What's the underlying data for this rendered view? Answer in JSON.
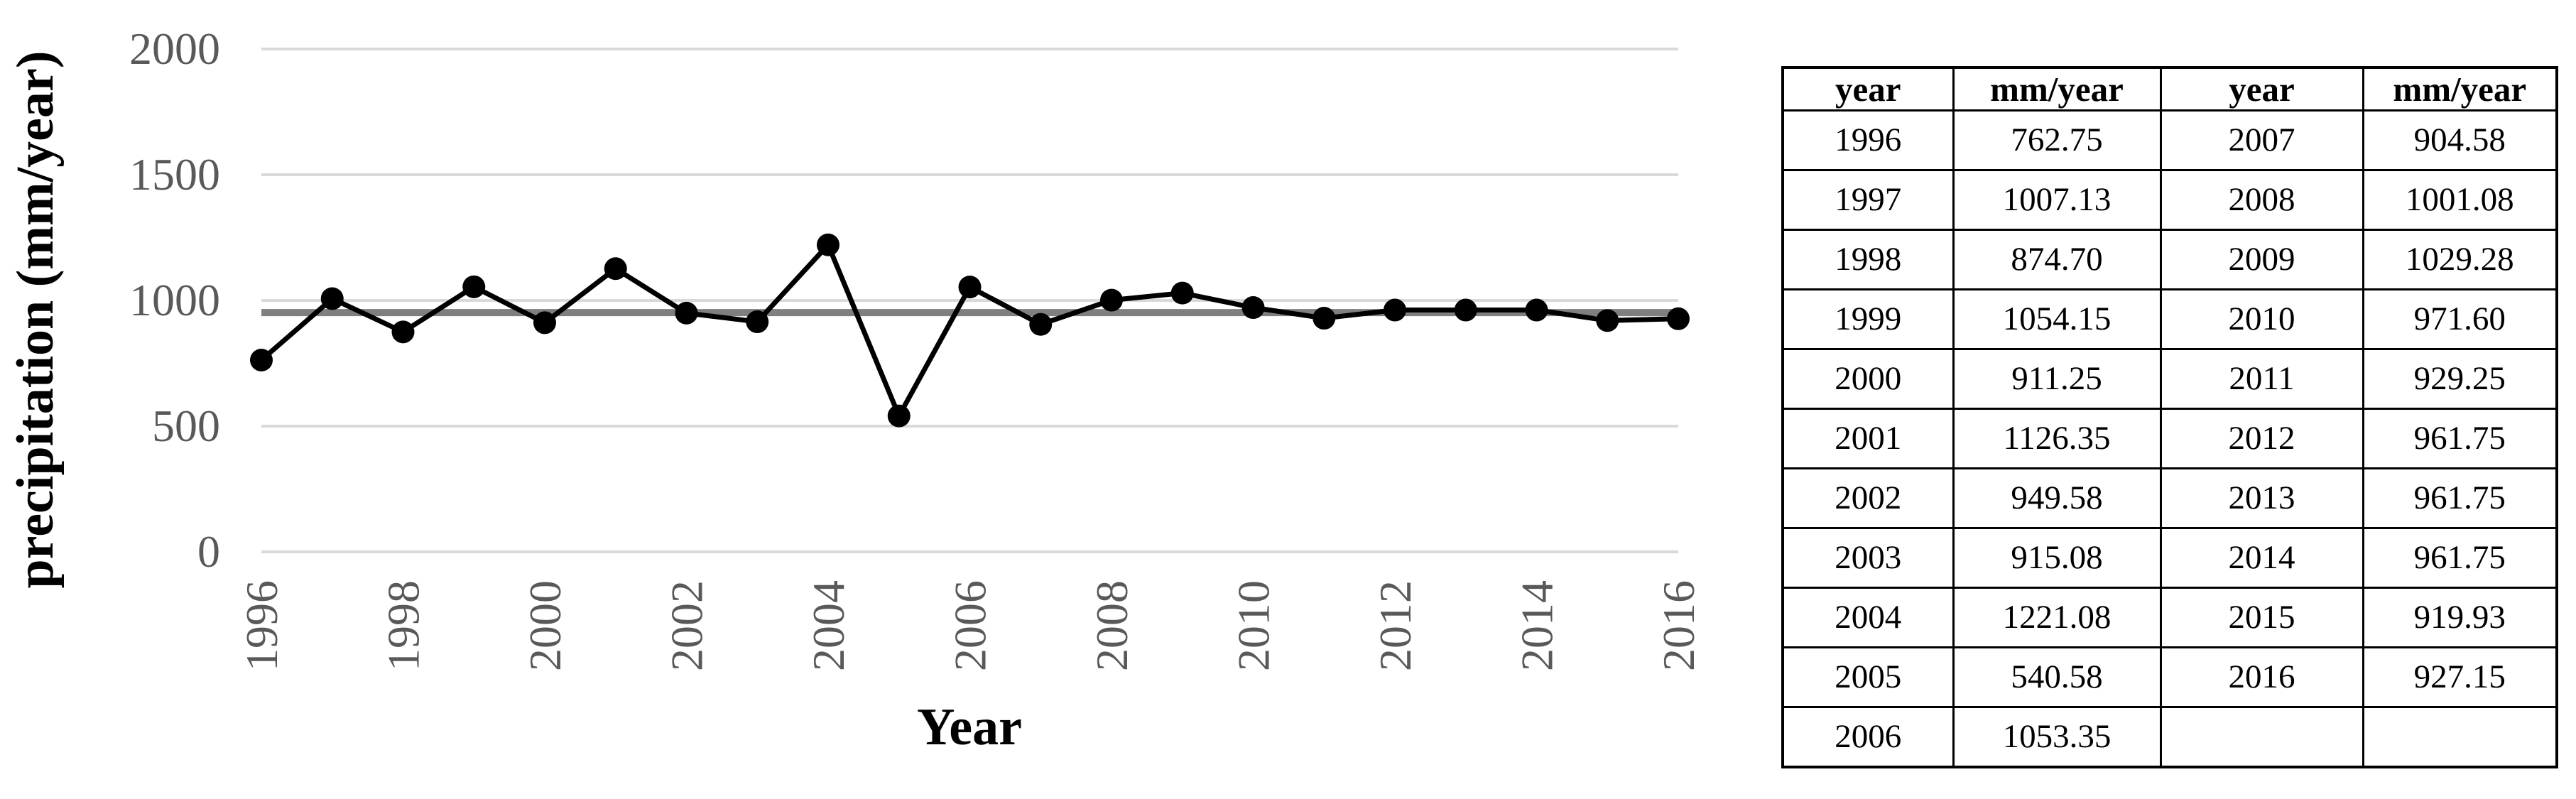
{
  "chart_data": {
    "type": "line",
    "title": "",
    "xlabel": "Year",
    "ylabel": "precipitation (mm/year)",
    "x": [
      1996,
      1997,
      1998,
      1999,
      2000,
      2001,
      2002,
      2003,
      2004,
      2005,
      2006,
      2007,
      2008,
      2009,
      2010,
      2011,
      2012,
      2013,
      2014,
      2015,
      2016
    ],
    "values": [
      762.75,
      1007.13,
      874.7,
      1054.15,
      911.25,
      1126.35,
      949.58,
      915.08,
      1221.08,
      540.58,
      1053.35,
      904.58,
      1001.08,
      1029.28,
      971.6,
      929.25,
      961.75,
      961.75,
      961.75,
      919.93,
      927.15
    ],
    "mean_line_value": 951.62,
    "ylim": [
      0,
      2000
    ],
    "y_ticks": [
      0,
      500,
      1000,
      1500,
      2000
    ],
    "x_tick_labels": [
      "1996",
      "1998",
      "2000",
      "2002",
      "2004",
      "2006",
      "2008",
      "2010",
      "2012",
      "2014",
      "2016"
    ],
    "x_tick_step": 2,
    "grid": "horizontal",
    "legend": "none",
    "marker": "filled-circle",
    "colors": {
      "line": "#000000",
      "marker": "#000000",
      "mean_line": "#7F7F7F",
      "gridline": "#D9D9D9",
      "tick_label": "#595959",
      "axis_title": "#000000",
      "table_border": "#000000",
      "background": "#FFFFFF"
    }
  },
  "table": {
    "headers": [
      "year",
      "mm/year",
      "year",
      "mm/year"
    ],
    "rows": [
      [
        "1996",
        "762.75",
        "2007",
        "904.58"
      ],
      [
        "1997",
        "1007.13",
        "2008",
        "1001.08"
      ],
      [
        "1998",
        "874.70",
        "2009",
        "1029.28"
      ],
      [
        "1999",
        "1054.15",
        "2010",
        "971.60"
      ],
      [
        "2000",
        "911.25",
        "2011",
        "929.25"
      ],
      [
        "2001",
        "1126.35",
        "2012",
        "961.75"
      ],
      [
        "2002",
        "949.58",
        "2013",
        "961.75"
      ],
      [
        "2003",
        "915.08",
        "2014",
        "961.75"
      ],
      [
        "2004",
        "1221.08",
        "2015",
        "919.93"
      ],
      [
        "2005",
        "540.58",
        "2016",
        "927.15"
      ],
      [
        "2006",
        "1053.35",
        "",
        ""
      ]
    ]
  }
}
